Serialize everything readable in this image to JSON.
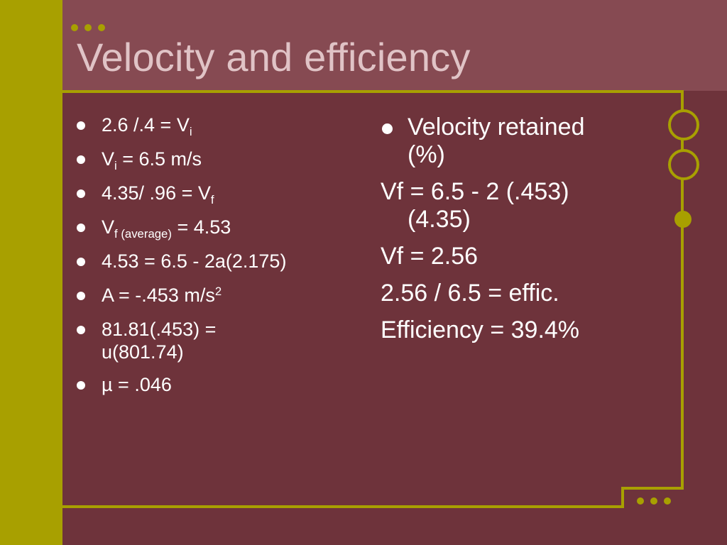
{
  "slide": {
    "title": "Velocity and efficiency",
    "left_items": [
      {
        "main": "2.6 /.4 = V",
        "sub": "i"
      },
      {
        "main": "V",
        "sub": "i",
        "rest": " = 6.5 m/s"
      },
      {
        "main": "4.35/ .96 = V",
        "sub": "f"
      },
      {
        "main": "V",
        "sub": "f (average)",
        "rest": " = 4.53"
      },
      {
        "main": "4.53 = 6.5 - 2a(2.175)"
      },
      {
        "main": "A = -.453 m/s",
        "sup": "2"
      },
      {
        "main": "81.81(.453) = u(801.74)"
      },
      {
        "main": "µ = .046"
      }
    ],
    "right_items": [
      "Velocity retained (%)",
      "Vf = 6.5 - 2 (.453)(4.35)",
      "Vf = 2.56",
      "2.56 / 6.5 = effic.",
      "Efficiency = 39.4%"
    ]
  },
  "colors": {
    "background": "#6e333b",
    "title_band": "#864a52",
    "accent": "#a8a000",
    "title_text": "#e0c3c6",
    "body_text": "#ffffff"
  }
}
